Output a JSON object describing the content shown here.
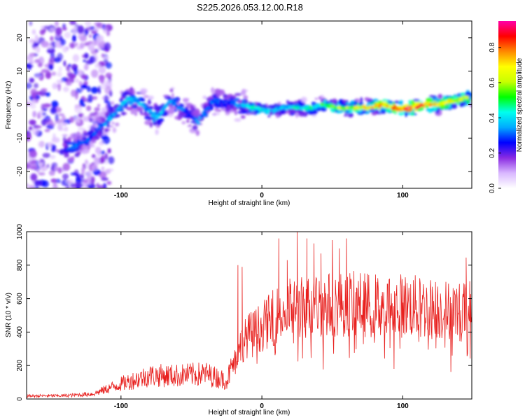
{
  "title": "S225.2026.053.12.00.R18",
  "chart_data": [
    {
      "type": "heatmap",
      "xlabel": "Height of straight line (km)",
      "ylabel": "Frequency (Hz)",
      "xlim": [
        -167,
        149
      ],
      "ylim": [
        -25,
        25
      ],
      "xticks": [
        -100,
        0,
        100
      ],
      "yticks": [
        -20,
        -10,
        0,
        10,
        20
      ],
      "colorbar": {
        "label": "Normalized spectral amplitude",
        "range": [
          0,
          0.95
        ],
        "ticks": [
          0.0,
          0.2,
          0.4,
          0.6,
          0.8
        ],
        "colors": [
          "#ffffff",
          "#d9b8ff",
          "#8a2be2",
          "#0000ff",
          "#00aaff",
          "#00ffee",
          "#00ff00",
          "#c8ff00",
          "#ffff00",
          "#ff8800",
          "#ff0000",
          "#ff00aa"
        ]
      },
      "ridge": {
        "x": [
          -135,
          -125,
          -115,
          -105,
          -95,
          -85,
          -75,
          -65,
          -55,
          -45,
          -35,
          -25,
          -15,
          -5,
          5,
          15,
          25,
          35,
          45,
          55,
          65,
          75,
          85,
          95,
          105,
          115,
          125,
          135,
          145
        ],
        "frequency": [
          -13,
          -11,
          -7,
          -3,
          2,
          0,
          -4,
          1,
          -2,
          -5,
          1,
          1,
          0,
          -1,
          -2,
          -1,
          -1,
          -1,
          0,
          -1,
          -1,
          -1,
          0,
          -1,
          -1,
          0,
          0,
          1,
          2
        ],
        "amplitude": [
          0.35,
          0.3,
          0.3,
          0.35,
          0.4,
          0.35,
          0.4,
          0.35,
          0.3,
          0.35,
          0.3,
          0.3,
          0.35,
          0.45,
          0.4,
          0.4,
          0.45,
          0.45,
          0.55,
          0.6,
          0.65,
          0.7,
          0.75,
          0.8,
          0.9,
          0.8,
          0.75,
          0.7,
          0.65
        ]
      }
    },
    {
      "type": "line",
      "xlabel": "Height of straight line (km)",
      "ylabel": "SNR (10 * v/v)",
      "xlim": [
        -167,
        149
      ],
      "ylim": [
        0,
        1000
      ],
      "xticks": [
        -100,
        0,
        100
      ],
      "yticks": [
        0,
        200,
        400,
        600,
        800,
        1000
      ],
      "color": "#e8201e",
      "envelope": {
        "x": [
          -167,
          -140,
          -120,
          -110,
          -100,
          -80,
          -60,
          -40,
          -25,
          -15,
          -10,
          0,
          10,
          20,
          40,
          60,
          80,
          100,
          120,
          140,
          149
        ],
        "y": [
          18,
          20,
          30,
          60,
          90,
          140,
          140,
          150,
          110,
          320,
          380,
          430,
          500,
          540,
          560,
          570,
          560,
          560,
          540,
          520,
          530
        ]
      },
      "spikes": [
        {
          "x": -17,
          "y": 800
        },
        {
          "x": -14,
          "y": 790
        },
        {
          "x": 12,
          "y": 960
        },
        {
          "x": 18,
          "y": 830
        },
        {
          "x": 25,
          "y": 1000
        },
        {
          "x": 32,
          "y": 960
        },
        {
          "x": 37,
          "y": 930
        },
        {
          "x": 42,
          "y": 870
        },
        {
          "x": 50,
          "y": 950
        },
        {
          "x": 55,
          "y": 900
        },
        {
          "x": 60,
          "y": 960
        },
        {
          "x": 145,
          "y": 845
        }
      ]
    }
  ]
}
